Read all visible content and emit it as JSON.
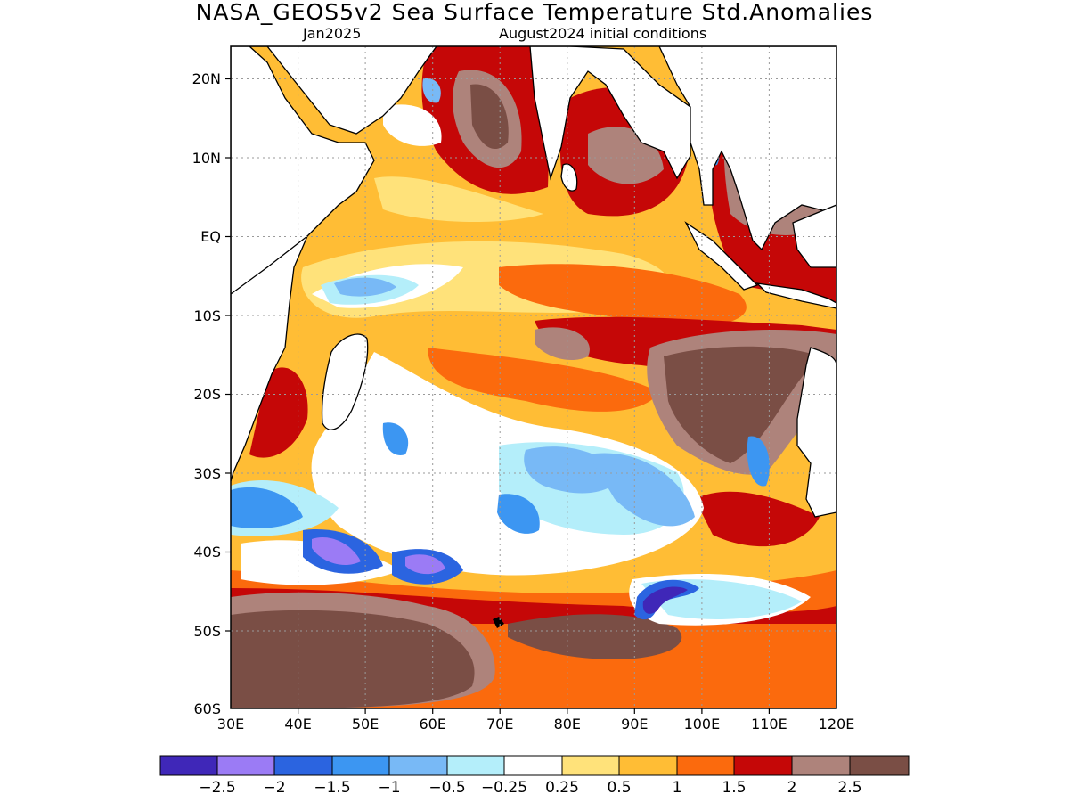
{
  "header": {
    "title": "NASA_GEOS5v2 Sea Surface Temperature Std.Anomalies",
    "valid_month": "Jan2025",
    "initial_conditions": "August2024 initial conditions"
  },
  "map": {
    "lon_range": [
      30,
      120
    ],
    "lat_range": [
      -60,
      24
    ],
    "lon_ticks": [
      "30E",
      "40E",
      "50E",
      "60E",
      "70E",
      "80E",
      "90E",
      "100E",
      "110E",
      "120E"
    ],
    "lat_ticks": [
      "20N",
      "10N",
      "EQ",
      "10S",
      "20S",
      "30S",
      "40S",
      "50S",
      "60S"
    ],
    "grid": true
  },
  "colorbar": {
    "colors": [
      "#3f27b8",
      "#9b7bf5",
      "#2b64e0",
      "#3c96f2",
      "#78b9f6",
      "#b4eefa",
      "#ffffff",
      "#ffe27a",
      "#ffbd35",
      "#fb6a0d",
      "#c50707",
      "#ae837b",
      "#7a4e45"
    ],
    "labels": [
      "−2.5",
      "−2",
      "−1.5",
      "−1",
      "−0.5",
      "−0.25",
      "0.25",
      "0.5",
      "1",
      "1.5",
      "2",
      "2.5"
    ]
  }
}
